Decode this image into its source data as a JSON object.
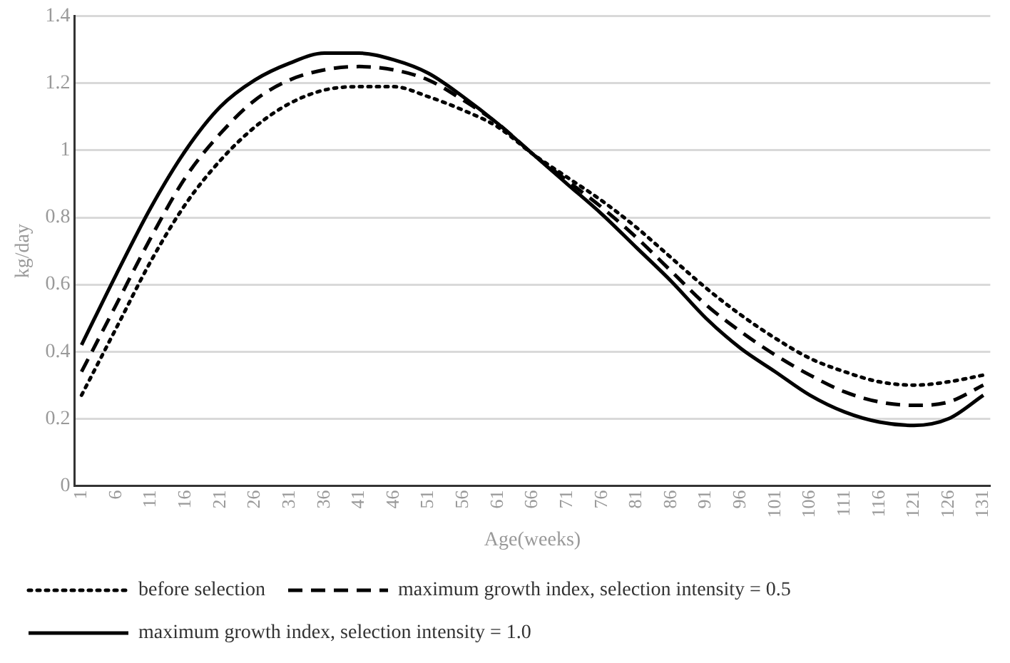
{
  "chart_data": {
    "type": "line",
    "xlabel": "Age(weeks)",
    "ylabel": "kg/day",
    "x": [
      1,
      6,
      11,
      16,
      21,
      26,
      31,
      36,
      41,
      46,
      51,
      56,
      61,
      66,
      71,
      76,
      81,
      86,
      91,
      96,
      101,
      106,
      111,
      116,
      121,
      126,
      131
    ],
    "xlim": [
      0,
      132
    ],
    "xticks": [
      1,
      6,
      11,
      16,
      21,
      26,
      31,
      36,
      41,
      46,
      51,
      56,
      61,
      66,
      71,
      76,
      81,
      86,
      91,
      96,
      101,
      106,
      111,
      116,
      121,
      126,
      131
    ],
    "ylim": [
      0,
      1.4
    ],
    "yticks": [
      0,
      0.2,
      0.4,
      0.6,
      0.8,
      1,
      1.2,
      1.4
    ],
    "grid": "y",
    "legend": "bottom",
    "marker": "none",
    "series": [
      {
        "name": "before selection",
        "color": "#000000",
        "line_style": "dotted",
        "values": [
          0.27,
          0.47,
          0.67,
          0.84,
          0.97,
          1.07,
          1.14,
          1.18,
          1.19,
          1.19,
          1.16,
          1.12,
          1.07,
          0.99,
          0.92,
          0.85,
          0.77,
          0.68,
          0.59,
          0.51,
          0.44,
          0.38,
          0.34,
          0.31,
          0.3,
          0.31,
          0.33
        ]
      },
      {
        "name": "maximum growth index, selection intensity = 0.5",
        "color": "#000000",
        "line_style": "dashed",
        "values": [
          0.34,
          0.54,
          0.74,
          0.92,
          1.05,
          1.15,
          1.21,
          1.24,
          1.25,
          1.24,
          1.21,
          1.15,
          1.08,
          0.99,
          0.91,
          0.83,
          0.74,
          0.64,
          0.54,
          0.46,
          0.39,
          0.33,
          0.28,
          0.25,
          0.24,
          0.25,
          0.3
        ]
      },
      {
        "name": "maximum growth index, selection intensity = 1.0",
        "color": "#000000",
        "line_style": "solid",
        "values": [
          0.42,
          0.63,
          0.83,
          1.0,
          1.13,
          1.21,
          1.26,
          1.29,
          1.29,
          1.27,
          1.23,
          1.16,
          1.08,
          0.99,
          0.9,
          0.81,
          0.71,
          0.61,
          0.5,
          0.41,
          0.34,
          0.27,
          0.22,
          0.19,
          0.18,
          0.2,
          0.27
        ]
      }
    ]
  }
}
